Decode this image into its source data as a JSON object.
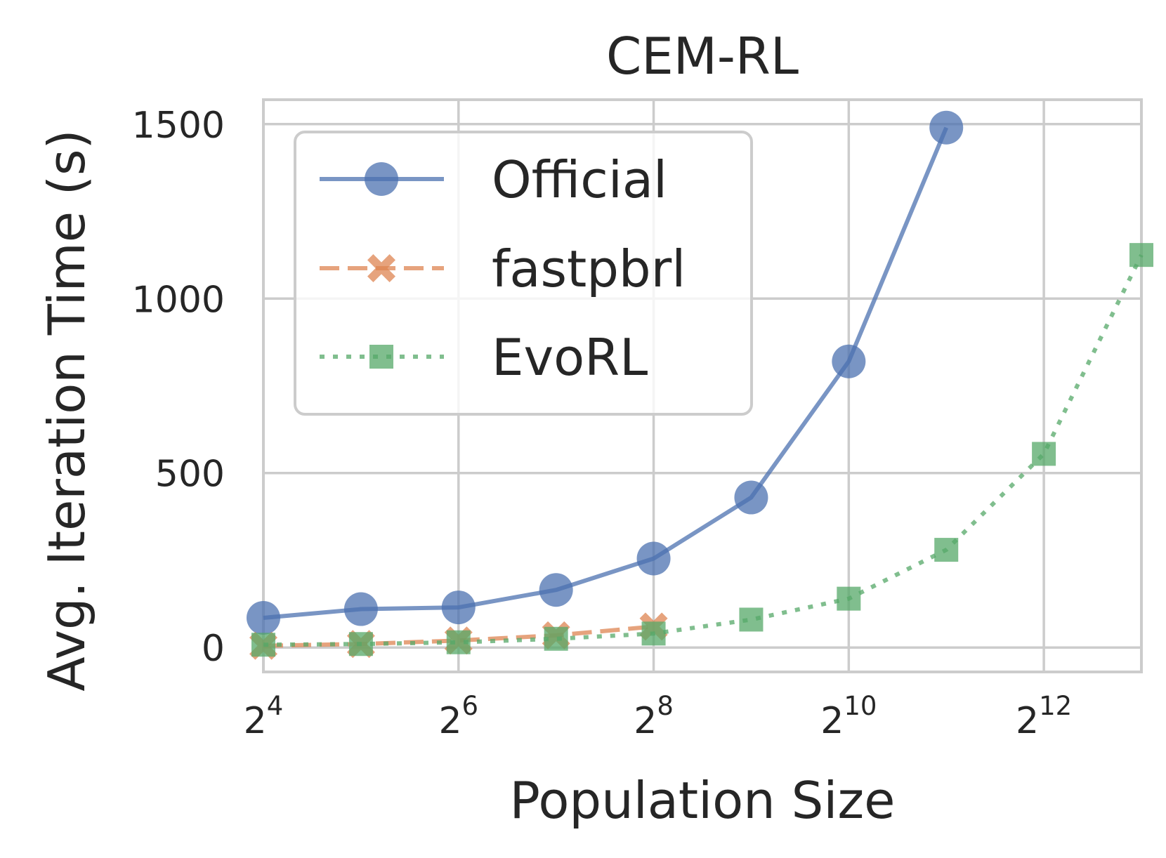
{
  "chart_data": {
    "type": "line",
    "title": "CEM-RL",
    "xlabel": "Population Size",
    "ylabel": "Avg. Iteration Time (s)",
    "x_scale": "log2",
    "x_exponents": [
      4,
      5,
      6,
      7,
      8,
      9,
      10,
      11,
      12,
      13
    ],
    "xlim_exponent": [
      4,
      13
    ],
    "ylim": [
      -70,
      1570
    ],
    "xticks": [
      {
        "base": "2",
        "exp": "4",
        "value": 4
      },
      {
        "base": "2",
        "exp": "6",
        "value": 6
      },
      {
        "base": "2",
        "exp": "8",
        "value": 8
      },
      {
        "base": "2",
        "exp": "10",
        "value": 10
      },
      {
        "base": "2",
        "exp": "12",
        "value": 12
      }
    ],
    "yticks": [
      {
        "label": "0",
        "value": 0
      },
      {
        "label": "500",
        "value": 500
      },
      {
        "label": "1000",
        "value": 1000
      },
      {
        "label": "1500",
        "value": 1500
      }
    ],
    "grid": true,
    "legend_position": "upper-left",
    "series": [
      {
        "name": "Official",
        "color": "#4c72b0",
        "linestyle": "solid",
        "marker": "circle",
        "x": [
          4,
          5,
          6,
          7,
          8,
          9,
          10,
          11
        ],
        "values": [
          85,
          110,
          115,
          165,
          255,
          430,
          820,
          1490
        ]
      },
      {
        "name": "fastpbrl",
        "color": "#dd8452",
        "linestyle": "dashed",
        "marker": "x",
        "x": [
          4,
          5,
          6,
          7,
          8
        ],
        "values": [
          5,
          10,
          20,
          35,
          60
        ]
      },
      {
        "name": "EvoRL",
        "color": "#55a868",
        "linestyle": "dotted",
        "marker": "square",
        "x": [
          4,
          5,
          6,
          7,
          8,
          9,
          10,
          11,
          12,
          13
        ],
        "values": [
          8,
          10,
          15,
          25,
          40,
          80,
          140,
          280,
          555,
          1125
        ]
      }
    ]
  }
}
